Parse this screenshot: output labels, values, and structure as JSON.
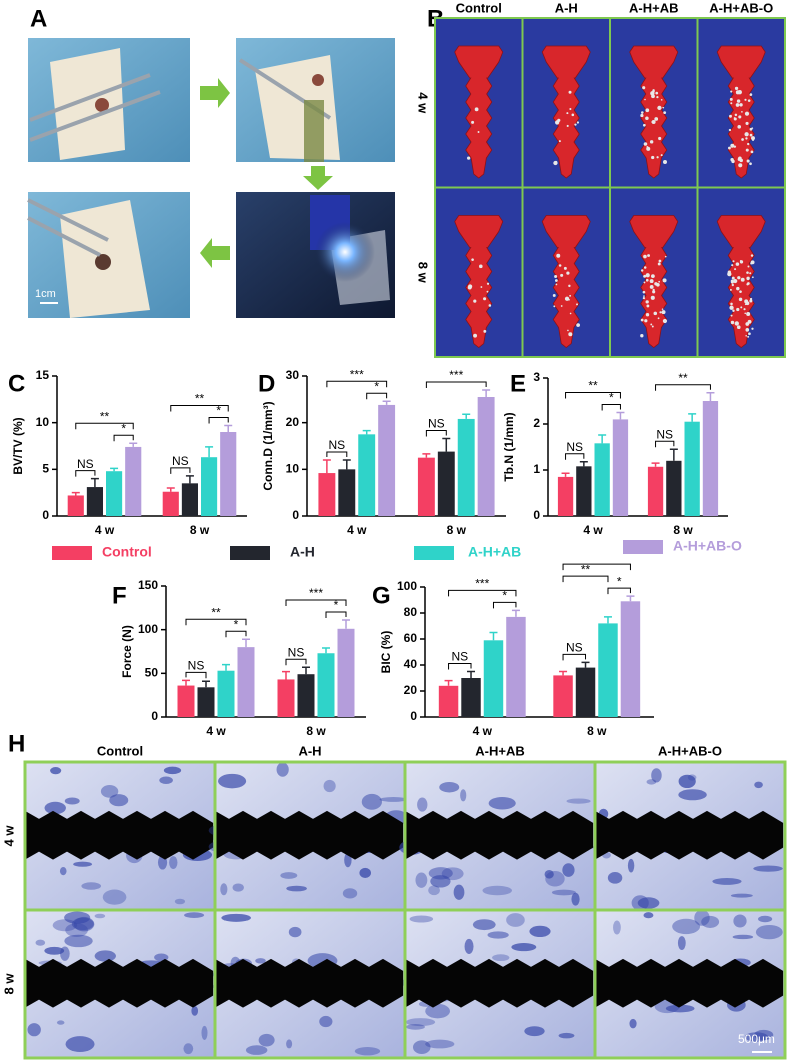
{
  "photo_panel": {
    "label": "A",
    "scale_bar": "1cm"
  },
  "screw_panel": {
    "label": "B",
    "columns": [
      "Control",
      "A-H",
      "A-H+AB",
      "A-H+AB-O"
    ],
    "rows": [
      "4 w",
      "8 w"
    ]
  },
  "chart_data": [
    {
      "type": "bar",
      "panel_label": "C",
      "y_label": "BV/TV  (%)",
      "categories": [
        "4 w",
        "8 w"
      ],
      "ylim": [
        0,
        15
      ],
      "yticks": [
        0,
        5,
        10,
        15
      ],
      "series": [
        {
          "name": "Control",
          "color": "#f43f63",
          "values": [
            2.2,
            2.6
          ],
          "errors": [
            0.3,
            0.4
          ]
        },
        {
          "name": "A-H",
          "color": "#23262e",
          "values": [
            3.1,
            3.5
          ],
          "errors": [
            0.9,
            0.8
          ]
        },
        {
          "name": "A-H+AB",
          "color": "#2fd3c9",
          "values": [
            4.8,
            6.3
          ],
          "errors": [
            0.3,
            1.1
          ]
        },
        {
          "name": "A-H+AB-O",
          "color": "#b49ddb",
          "values": [
            7.4,
            9.0
          ],
          "errors": [
            0.4,
            0.7
          ]
        }
      ],
      "comparisons": [
        {
          "category": 0,
          "pair": [
            0,
            1
          ],
          "label": "NS"
        },
        {
          "category": 0,
          "pair": [
            2,
            3
          ],
          "label": "*"
        },
        {
          "category": 0,
          "pair": [
            0,
            3
          ],
          "label": "**"
        },
        {
          "category": 1,
          "pair": [
            0,
            1
          ],
          "label": "NS"
        },
        {
          "category": 1,
          "pair": [
            2,
            3
          ],
          "label": "*"
        },
        {
          "category": 1,
          "pair": [
            0,
            3
          ],
          "label": "**"
        }
      ]
    },
    {
      "type": "bar",
      "panel_label": "D",
      "y_label": "Conn.D  (1/mm³)",
      "categories": [
        "4 w",
        "8 w"
      ],
      "ylim": [
        0,
        30
      ],
      "yticks": [
        0,
        10,
        20,
        30
      ],
      "series": [
        {
          "name": "Control",
          "color": "#f43f63",
          "values": [
            9.2,
            12.5
          ],
          "errors": [
            2.8,
            0.8
          ]
        },
        {
          "name": "A-H",
          "color": "#23262e",
          "values": [
            10.0,
            13.8
          ],
          "errors": [
            2.0,
            2.8
          ]
        },
        {
          "name": "A-H+AB",
          "color": "#2fd3c9",
          "values": [
            17.5,
            20.8
          ],
          "errors": [
            0.8,
            1.0
          ]
        },
        {
          "name": "A-H+AB-O",
          "color": "#b49ddb",
          "values": [
            23.8,
            25.5
          ],
          "errors": [
            0.8,
            1.5
          ]
        }
      ],
      "comparisons": [
        {
          "category": 0,
          "pair": [
            0,
            1
          ],
          "label": "NS"
        },
        {
          "category": 0,
          "pair": [
            2,
            3
          ],
          "label": "*"
        },
        {
          "category": 0,
          "pair": [
            0,
            3
          ],
          "label": "***"
        },
        {
          "category": 1,
          "pair": [
            0,
            1
          ],
          "label": "NS"
        },
        {
          "category": 1,
          "pair": [
            0,
            3
          ],
          "label": "***"
        }
      ]
    },
    {
      "type": "bar",
      "panel_label": "E",
      "y_label": "Tb.N  (1/mm)",
      "categories": [
        "4 w",
        "8 w"
      ],
      "ylim": [
        0,
        3
      ],
      "yticks": [
        0,
        1,
        2,
        3
      ],
      "series": [
        {
          "name": "Control",
          "color": "#f43f63",
          "values": [
            0.85,
            1.07
          ],
          "errors": [
            0.08,
            0.08
          ]
        },
        {
          "name": "A-H",
          "color": "#23262e",
          "values": [
            1.08,
            1.2
          ],
          "errors": [
            0.1,
            0.25
          ]
        },
        {
          "name": "A-H+AB",
          "color": "#2fd3c9",
          "values": [
            1.58,
            2.05
          ],
          "errors": [
            0.18,
            0.17
          ]
        },
        {
          "name": "A-H+AB-O",
          "color": "#b49ddb",
          "values": [
            2.1,
            2.5
          ],
          "errors": [
            0.15,
            0.18
          ]
        }
      ],
      "comparisons": [
        {
          "category": 0,
          "pair": [
            0,
            1
          ],
          "label": "NS"
        },
        {
          "category": 0,
          "pair": [
            2,
            3
          ],
          "label": "*"
        },
        {
          "category": 0,
          "pair": [
            0,
            3
          ],
          "label": "**"
        },
        {
          "category": 1,
          "pair": [
            0,
            1
          ],
          "label": "NS"
        },
        {
          "category": 1,
          "pair": [
            0,
            3
          ],
          "label": "**"
        }
      ]
    },
    {
      "type": "bar",
      "panel_label": "F",
      "y_label": "Force (N)",
      "categories": [
        "4 w",
        "8 w"
      ],
      "ylim": [
        0,
        150
      ],
      "yticks": [
        0,
        50,
        100,
        150
      ],
      "series": [
        {
          "name": "Control",
          "color": "#f43f63",
          "values": [
            36,
            43
          ],
          "errors": [
            6,
            9
          ]
        },
        {
          "name": "A-H",
          "color": "#23262e",
          "values": [
            34,
            49
          ],
          "errors": [
            7,
            8
          ]
        },
        {
          "name": "A-H+AB",
          "color": "#2fd3c9",
          "values": [
            53,
            73
          ],
          "errors": [
            7,
            6
          ]
        },
        {
          "name": "A-H+AB-O",
          "color": "#b49ddb",
          "values": [
            80,
            101
          ],
          "errors": [
            9,
            10
          ]
        }
      ],
      "comparisons": [
        {
          "category": 0,
          "pair": [
            0,
            1
          ],
          "label": "NS"
        },
        {
          "category": 0,
          "pair": [
            2,
            3
          ],
          "label": "*"
        },
        {
          "category": 0,
          "pair": [
            0,
            3
          ],
          "label": "**"
        },
        {
          "category": 1,
          "pair": [
            0,
            1
          ],
          "label": "NS"
        },
        {
          "category": 1,
          "pair": [
            2,
            3
          ],
          "label": "*"
        },
        {
          "category": 1,
          "pair": [
            0,
            3
          ],
          "label": "***"
        }
      ]
    },
    {
      "type": "bar",
      "panel_label": "G",
      "y_label": "BIC  (%)",
      "categories": [
        "4 w",
        "8 w"
      ],
      "ylim": [
        0,
        100
      ],
      "yticks": [
        0,
        20,
        40,
        60,
        80,
        100
      ],
      "series": [
        {
          "name": "Control",
          "color": "#f43f63",
          "values": [
            24,
            32
          ],
          "errors": [
            4,
            3
          ]
        },
        {
          "name": "A-H",
          "color": "#23262e",
          "values": [
            30,
            38
          ],
          "errors": [
            5,
            4
          ]
        },
        {
          "name": "A-H+AB",
          "color": "#2fd3c9",
          "values": [
            59,
            72
          ],
          "errors": [
            6,
            5
          ]
        },
        {
          "name": "A-H+AB-O",
          "color": "#b49ddb",
          "values": [
            77,
            89
          ],
          "errors": [
            5,
            4
          ]
        }
      ],
      "comparisons": [
        {
          "category": 0,
          "pair": [
            0,
            1
          ],
          "label": "NS"
        },
        {
          "category": 0,
          "pair": [
            2,
            3
          ],
          "label": "*"
        },
        {
          "category": 0,
          "pair": [
            0,
            3
          ],
          "label": "***"
        },
        {
          "category": 1,
          "pair": [
            0,
            1
          ],
          "label": "NS"
        },
        {
          "category": 1,
          "pair": [
            2,
            3
          ],
          "label": "*"
        },
        {
          "category": 1,
          "pair": [
            0,
            2
          ],
          "label": "**"
        },
        {
          "category": 1,
          "pair": [
            0,
            3
          ],
          "label": ""
        }
      ]
    }
  ],
  "histology_panel": {
    "label": "H",
    "columns": [
      "Control",
      "A-H",
      "A-H+AB",
      "A-H+AB-O"
    ],
    "rows": [
      "4 w",
      "8 w"
    ],
    "scale_bar": "500μm"
  }
}
